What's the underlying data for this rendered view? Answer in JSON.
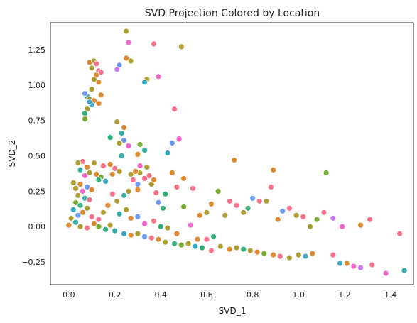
{
  "chart_data": {
    "type": "scatter",
    "title": "SVD Projection Colored by Location",
    "xlabel": "SVD_1",
    "ylabel": "SVD_2",
    "xlim": [
      -0.08,
      1.5
    ],
    "ylim": [
      -0.41,
      1.44
    ],
    "xticks": [
      0.0,
      0.2,
      0.4,
      0.6,
      0.8,
      1.0,
      1.2,
      1.4
    ],
    "xtick_labels": [
      "0.0",
      "0.2",
      "0.4",
      "0.6",
      "0.8",
      "1.0",
      "1.2",
      "1.4"
    ],
    "yticks": [
      -0.25,
      0.0,
      0.25,
      0.5,
      0.75,
      1.0,
      1.25
    ],
    "ytick_labels": [
      "−0.25",
      "0.00",
      "0.25",
      "0.50",
      "0.75",
      "1.00",
      "1.25"
    ],
    "grid": false,
    "legend": "none",
    "palette": [
      "#f77189",
      "#dc8932",
      "#ae9d31",
      "#77ab31",
      "#33b07a",
      "#36ada4",
      "#38a9c5",
      "#6e9bf4",
      "#cc7af4",
      "#f565cc"
    ],
    "points": [
      [
        0.25,
        1.38,
        2
      ],
      [
        0.26,
        1.3,
        9
      ],
      [
        0.49,
        1.27,
        2
      ],
      [
        0.37,
        1.29,
        0
      ],
      [
        0.25,
        1.19,
        1
      ],
      [
        0.27,
        1.17,
        2
      ],
      [
        0.22,
        1.14,
        7
      ],
      [
        0.21,
        1.11,
        8
      ],
      [
        0.39,
        1.06,
        9
      ],
      [
        0.34,
        1.04,
        2
      ],
      [
        0.33,
        1.02,
        6
      ],
      [
        0.09,
        1.16,
        1
      ],
      [
        0.11,
        1.17,
        2
      ],
      [
        0.12,
        1.15,
        0
      ],
      [
        0.1,
        1.12,
        2
      ],
      [
        0.13,
        1.1,
        0
      ],
      [
        0.12,
        1.07,
        1
      ],
      [
        0.14,
        1.09,
        0
      ],
      [
        0.11,
        1.04,
        2
      ],
      [
        0.13,
        1.02,
        1
      ],
      [
        0.14,
        0.93,
        1
      ],
      [
        0.1,
        0.97,
        2
      ],
      [
        0.08,
        0.92,
        5
      ],
      [
        0.07,
        0.94,
        7
      ],
      [
        0.09,
        0.9,
        2
      ],
      [
        0.11,
        0.89,
        1
      ],
      [
        0.1,
        0.86,
        6
      ],
      [
        0.08,
        0.83,
        2
      ],
      [
        0.07,
        0.8,
        4
      ],
      [
        0.07,
        0.76,
        3
      ],
      [
        0.13,
        0.87,
        1
      ],
      [
        0.09,
        0.88,
        6
      ],
      [
        0.46,
        0.83,
        0
      ],
      [
        0.21,
        0.74,
        2
      ],
      [
        0.24,
        0.7,
        1
      ],
      [
        0.18,
        0.63,
        4
      ],
      [
        0.23,
        0.66,
        5
      ],
      [
        0.24,
        0.61,
        7
      ],
      [
        0.26,
        0.57,
        9
      ],
      [
        0.22,
        0.59,
        2
      ],
      [
        0.48,
        0.62,
        9
      ],
      [
        0.45,
        0.59,
        7
      ],
      [
        0.31,
        0.58,
        3
      ],
      [
        0.33,
        0.54,
        5
      ],
      [
        0.3,
        0.51,
        1
      ],
      [
        0.23,
        0.5,
        5
      ],
      [
        0.43,
        0.52,
        6
      ],
      [
        0.72,
        0.47,
        1
      ],
      [
        0.89,
        0.4,
        1
      ],
      [
        1.12,
        0.38,
        3
      ],
      [
        0.06,
        0.46,
        0
      ],
      [
        0.04,
        0.45,
        2
      ],
      [
        0.08,
        0.42,
        1
      ],
      [
        0.11,
        0.45,
        2
      ],
      [
        0.05,
        0.4,
        5
      ],
      [
        0.09,
        0.38,
        2
      ],
      [
        0.07,
        0.36,
        9
      ],
      [
        0.12,
        0.37,
        1
      ],
      [
        0.15,
        0.43,
        0
      ],
      [
        0.18,
        0.44,
        1
      ],
      [
        0.2,
        0.41,
        0
      ],
      [
        0.22,
        0.39,
        2
      ],
      [
        0.19,
        0.37,
        1
      ],
      [
        0.14,
        0.35,
        3
      ],
      [
        0.13,
        0.33,
        4
      ],
      [
        0.16,
        0.32,
        6
      ],
      [
        0.02,
        0.31,
        2
      ],
      [
        0.05,
        0.3,
        1
      ],
      [
        0.08,
        0.28,
        7
      ],
      [
        0.03,
        0.27,
        2
      ],
      [
        0.06,
        0.25,
        9
      ],
      [
        0.1,
        0.26,
        1
      ],
      [
        0.04,
        0.22,
        2
      ],
      [
        0.07,
        0.2,
        5
      ],
      [
        0.09,
        0.19,
        0
      ],
      [
        0.03,
        0.17,
        3
      ],
      [
        0.05,
        0.15,
        4
      ],
      [
        0.08,
        0.13,
        2
      ],
      [
        0.02,
        0.12,
        6
      ],
      [
        0.06,
        0.1,
        1
      ],
      [
        0.04,
        0.08,
        7
      ],
      [
        0.1,
        0.07,
        0
      ],
      [
        0.01,
        0.06,
        2
      ],
      [
        0.03,
        0.03,
        5
      ],
      [
        0.0,
        0.01,
        1
      ],
      [
        0.05,
        0.0,
        2
      ],
      [
        0.08,
        -0.01,
        0
      ],
      [
        0.11,
        0.02,
        1
      ],
      [
        0.13,
        0.0,
        3
      ],
      [
        0.16,
        -0.02,
        4
      ],
      [
        0.18,
        0.01,
        2
      ],
      [
        0.2,
        -0.03,
        5
      ],
      [
        0.24,
        -0.05,
        6
      ],
      [
        0.27,
        -0.06,
        1
      ],
      [
        0.3,
        -0.05,
        2
      ],
      [
        0.33,
        -0.07,
        7
      ],
      [
        0.36,
        -0.08,
        0
      ],
      [
        0.39,
        -0.09,
        1
      ],
      [
        0.42,
        -0.11,
        2
      ],
      [
        0.46,
        -0.12,
        4
      ],
      [
        0.49,
        -0.13,
        3
      ],
      [
        0.52,
        -0.12,
        2
      ],
      [
        0.55,
        -0.14,
        6
      ],
      [
        0.58,
        -0.15,
        4
      ],
      [
        0.62,
        -0.17,
        0
      ],
      [
        0.66,
        -0.14,
        2
      ],
      [
        0.7,
        -0.16,
        1
      ],
      [
        0.73,
        -0.15,
        2
      ],
      [
        0.76,
        -0.16,
        4
      ],
      [
        0.79,
        -0.17,
        2
      ],
      [
        0.82,
        -0.18,
        1
      ],
      [
        0.85,
        -0.19,
        3
      ],
      [
        0.89,
        -0.2,
        1
      ],
      [
        0.92,
        -0.21,
        0
      ],
      [
        0.96,
        -0.22,
        2
      ],
      [
        1.0,
        -0.2,
        2
      ],
      [
        1.03,
        -0.21,
        6
      ],
      [
        1.06,
        -0.19,
        1
      ],
      [
        1.15,
        -0.2,
        0
      ],
      [
        1.18,
        -0.26,
        6
      ],
      [
        1.21,
        -0.26,
        1
      ],
      [
        1.24,
        -0.28,
        9
      ],
      [
        1.27,
        -0.29,
        8
      ],
      [
        1.32,
        -0.27,
        0
      ],
      [
        1.38,
        -0.33,
        9
      ],
      [
        1.46,
        -0.31,
        5
      ],
      [
        1.44,
        -0.05,
        0
      ],
      [
        1.31,
        0.05,
        0
      ],
      [
        1.27,
        0.01,
        1
      ],
      [
        1.19,
        0.0,
        9
      ],
      [
        1.15,
        0.06,
        8
      ],
      [
        1.11,
        0.1,
        0
      ],
      [
        1.08,
        0.05,
        3
      ],
      [
        1.05,
        0.0,
        2
      ],
      [
        1.02,
        0.07,
        0
      ],
      [
        0.99,
        0.08,
        2
      ],
      [
        0.96,
        0.13,
        0
      ],
      [
        0.93,
        0.11,
        7
      ],
      [
        0.91,
        0.05,
        1
      ],
      [
        0.88,
        0.28,
        0
      ],
      [
        0.86,
        0.18,
        2
      ],
      [
        0.83,
        0.18,
        0
      ],
      [
        0.8,
        0.2,
        7
      ],
      [
        0.78,
        0.13,
        4
      ],
      [
        0.76,
        0.1,
        2
      ],
      [
        0.73,
        0.15,
        0
      ],
      [
        0.7,
        0.18,
        0
      ],
      [
        0.68,
        0.08,
        2
      ],
      [
        0.65,
        0.25,
        3
      ],
      [
        0.62,
        0.16,
        1
      ],
      [
        0.6,
        0.1,
        2
      ],
      [
        0.57,
        0.08,
        1
      ],
      [
        0.54,
        0.27,
        0
      ],
      [
        0.5,
        0.34,
        1
      ],
      [
        0.47,
        0.28,
        0
      ],
      [
        0.45,
        0.38,
        1
      ],
      [
        0.42,
        0.23,
        4
      ],
      [
        0.39,
        0.17,
        7
      ],
      [
        0.36,
        0.3,
        2
      ],
      [
        0.33,
        0.34,
        0
      ],
      [
        0.3,
        0.26,
        1
      ],
      [
        0.28,
        0.33,
        0
      ],
      [
        0.26,
        0.25,
        2
      ],
      [
        0.24,
        0.22,
        5
      ],
      [
        0.21,
        0.18,
        2
      ],
      [
        0.19,
        0.23,
        0
      ],
      [
        0.17,
        0.15,
        1
      ],
      [
        0.15,
        0.1,
        2
      ],
      [
        0.13,
        0.05,
        0
      ],
      [
        0.22,
        0.09,
        5
      ],
      [
        0.25,
        0.12,
        2
      ],
      [
        0.27,
        0.06,
        1
      ],
      [
        0.3,
        0.07,
        7
      ],
      [
        0.33,
        0.02,
        9
      ],
      [
        0.37,
        0.04,
        0
      ],
      [
        0.4,
        0.0,
        4
      ],
      [
        0.43,
        -0.01,
        2
      ],
      [
        0.47,
        -0.05,
        1
      ],
      [
        0.5,
        0.14,
        3
      ],
      [
        0.53,
        0.01,
        9
      ],
      [
        0.56,
        -0.09,
        1
      ],
      [
        0.6,
        -0.09,
        0
      ],
      [
        0.63,
        -0.07,
        4
      ],
      [
        0.3,
        0.3,
        7
      ],
      [
        0.31,
        0.38,
        2
      ],
      [
        0.34,
        0.42,
        2
      ],
      [
        0.35,
        0.36,
        0
      ],
      [
        0.37,
        0.33,
        1
      ],
      [
        0.31,
        0.43,
        9
      ],
      [
        0.27,
        0.37,
        2
      ],
      [
        0.29,
        0.39,
        1
      ],
      [
        0.38,
        0.24,
        0
      ],
      [
        0.41,
        0.13,
        4
      ]
    ]
  }
}
